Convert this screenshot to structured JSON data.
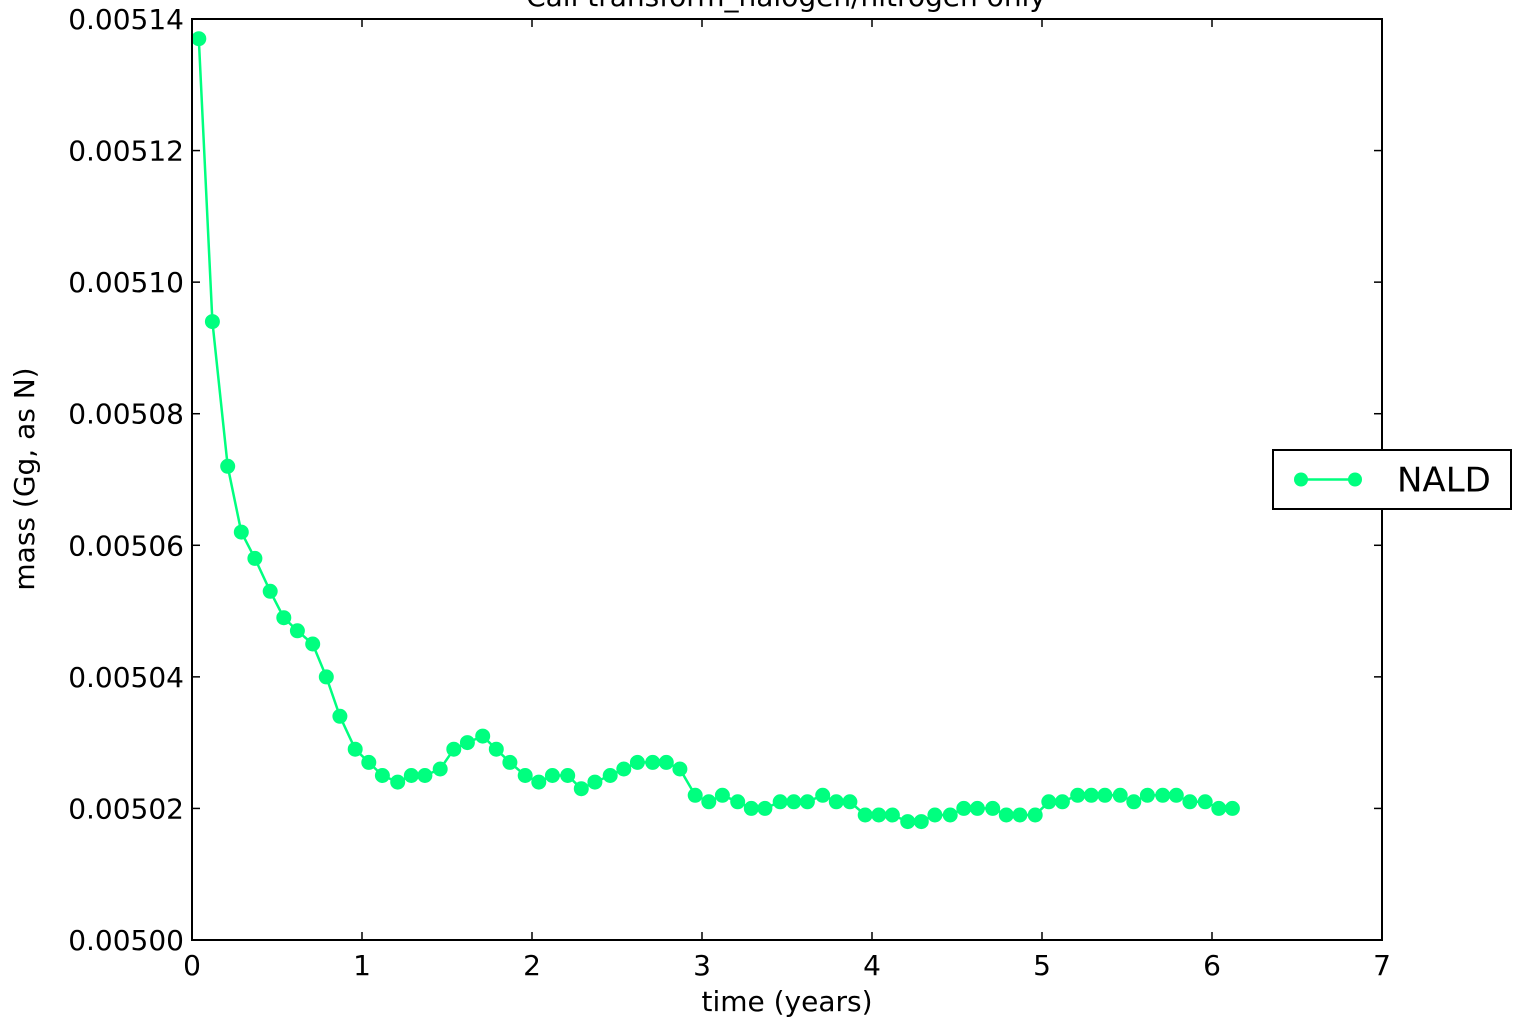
{
  "chart_data": {
    "type": "line",
    "title": "Call transform_halogen/nitrogen only",
    "xlabel": "time (years)",
    "ylabel": "mass (Gg, as N)",
    "xlim": [
      0,
      7
    ],
    "ylim": [
      0.005,
      0.00514
    ],
    "x_ticks": [
      {
        "value": 0,
        "label": "0"
      },
      {
        "value": 1,
        "label": "1"
      },
      {
        "value": 2,
        "label": "2"
      },
      {
        "value": 3,
        "label": "3"
      },
      {
        "value": 4,
        "label": "4"
      },
      {
        "value": 5,
        "label": "5"
      },
      {
        "value": 6,
        "label": "6"
      },
      {
        "value": 7,
        "label": "7"
      }
    ],
    "y_ticks": [
      {
        "value": 0.005,
        "label": "0.00500"
      },
      {
        "value": 0.00502,
        "label": "0.00502"
      },
      {
        "value": 0.00504,
        "label": "0.00504"
      },
      {
        "value": 0.00506,
        "label": "0.00506"
      },
      {
        "value": 0.00508,
        "label": "0.00508"
      },
      {
        "value": 0.0051,
        "label": "0.00510"
      },
      {
        "value": 0.00512,
        "label": "0.00512"
      },
      {
        "value": 0.00514,
        "label": "0.00514"
      }
    ],
    "grid": false,
    "legend_position": "outside-right",
    "series": [
      {
        "name": "NALD",
        "color": "#00ff7f",
        "marker": "circle",
        "x": [
          0.04,
          0.12,
          0.21,
          0.29,
          0.37,
          0.46,
          0.54,
          0.62,
          0.71,
          0.79,
          0.87,
          0.96,
          1.04,
          1.12,
          1.21,
          1.29,
          1.37,
          1.46,
          1.54,
          1.62,
          1.71,
          1.79,
          1.87,
          1.96,
          2.04,
          2.12,
          2.21,
          2.29,
          2.37,
          2.46,
          2.54,
          2.62,
          2.71,
          2.79,
          2.87,
          2.96,
          3.04,
          3.12,
          3.21,
          3.29,
          3.37,
          3.46,
          3.54,
          3.62,
          3.71,
          3.79,
          3.87,
          3.96,
          4.04,
          4.12,
          4.21,
          4.29,
          4.37,
          4.46,
          4.54,
          4.62,
          4.71,
          4.79,
          4.87,
          4.96,
          5.04,
          5.12,
          5.21,
          5.29,
          5.37,
          5.46,
          5.54,
          5.62,
          5.71,
          5.79,
          5.87,
          5.96,
          6.04,
          6.12
        ],
        "values": [
          0.005137,
          0.005094,
          0.005072,
          0.005062,
          0.005058,
          0.005053,
          0.005049,
          0.005047,
          0.005045,
          0.00504,
          0.005034,
          0.005029,
          0.005027,
          0.005025,
          0.005024,
          0.005025,
          0.005025,
          0.005026,
          0.005029,
          0.00503,
          0.005031,
          0.005029,
          0.005027,
          0.005025,
          0.005024,
          0.005025,
          0.005025,
          0.005023,
          0.005024,
          0.005025,
          0.005026,
          0.005027,
          0.005027,
          0.005027,
          0.005026,
          0.005022,
          0.005021,
          0.005022,
          0.005021,
          0.00502,
          0.00502,
          0.005021,
          0.005021,
          0.005021,
          0.005022,
          0.005021,
          0.005021,
          0.005019,
          0.005019,
          0.005019,
          0.005018,
          0.005018,
          0.005019,
          0.005019,
          0.00502,
          0.00502,
          0.00502,
          0.005019,
          0.005019,
          0.005019,
          0.005021,
          0.005021,
          0.005022,
          0.005022,
          0.005022,
          0.005022,
          0.005021,
          0.005022,
          0.005022,
          0.005022,
          0.005021,
          0.005021,
          0.00502,
          0.00502
        ]
      }
    ]
  }
}
